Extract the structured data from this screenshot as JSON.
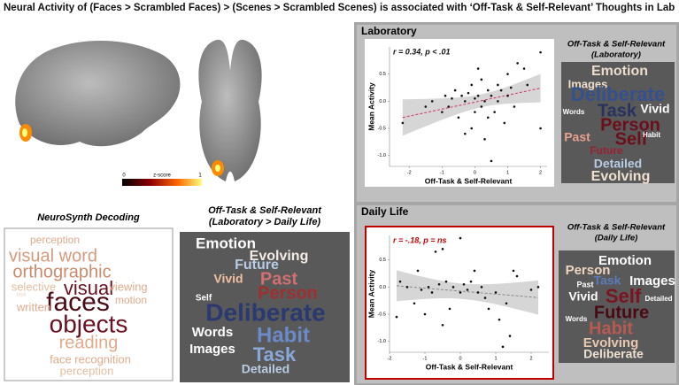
{
  "title": "Neural Activity of (Faces > Scrambled Faces) > (Scenes > Scrambled Scenes) is associated with ‘Off-Task & Self-Relevant’ Thoughts in Lab",
  "colorbar": {
    "min_label": "0",
    "label": "z-score",
    "max_label": "1"
  },
  "neurosynth": {
    "title": "NeuroSynth Decoding",
    "words": [
      {
        "text": "perception",
        "color": "#e2ab8c"
      },
      {
        "text": "visual word",
        "color": "#d69a7c"
      },
      {
        "text": "orthographic",
        "color": "#cc8a6c"
      },
      {
        "text": "selective",
        "color": "#e6bea0"
      },
      {
        "text": "visual",
        "color": "#6a1020"
      },
      {
        "text": "viewing",
        "color": "#e2ab8c"
      },
      {
        "text": "task",
        "color": "#eed4c0"
      },
      {
        "text": "faces",
        "color": "#4a0a14"
      },
      {
        "text": "written",
        "color": "#e2ab8c"
      },
      {
        "text": "motion",
        "color": "#e2ab8c"
      },
      {
        "text": "objects",
        "color": "#6a1020"
      },
      {
        "text": "reading",
        "color": "#e2ab8c"
      },
      {
        "text": "face recognition",
        "color": "#e2ab8c"
      },
      {
        "text": "perception",
        "color": "#e6bea0"
      }
    ]
  },
  "contrast_cloud": {
    "title_lines": [
      "Off-Task & Self-Relevant",
      "(Laboratory > Daily Life)"
    ],
    "words": [
      {
        "text": "Emotion",
        "color": "#ffffff"
      },
      {
        "text": "Evolving",
        "color": "#f4ece4"
      },
      {
        "text": "Future",
        "color": "#b8cce4"
      },
      {
        "text": "Vivid",
        "color": "#f0c0a0"
      },
      {
        "text": "Past",
        "color": "#d07070"
      },
      {
        "text": "Self",
        "color": "#ffffff"
      },
      {
        "text": "Person",
        "color": "#a03030"
      },
      {
        "text": "Deliberate",
        "color": "#2a3a70"
      },
      {
        "text": "Words",
        "color": "#ffffff"
      },
      {
        "text": "Habit",
        "color": "#6a8ac8"
      },
      {
        "text": "Images",
        "color": "#ffffff"
      },
      {
        "text": "Task",
        "color": "#8aa8d8"
      },
      {
        "text": "Detailed",
        "color": "#b8cce4"
      }
    ]
  },
  "lab_cloud": {
    "title_lines": [
      "Off-Task & Self-Relevant",
      "(Laboratory)"
    ],
    "words": [
      {
        "text": "Emotion",
        "color": "#ecdccc"
      },
      {
        "text": "Images",
        "color": "#ecdccc"
      },
      {
        "text": "Deliberate",
        "color": "#34508e"
      },
      {
        "text": "Task",
        "color": "#25335e"
      },
      {
        "text": "Words",
        "color": "#ffffff"
      },
      {
        "text": "Vivid",
        "color": "#ffffff"
      },
      {
        "text": "Person",
        "color": "#6b0f1a"
      },
      {
        "text": "Past",
        "color": "#e8a090"
      },
      {
        "text": "Self",
        "color": "#6b0f1a"
      },
      {
        "text": "Habit",
        "color": "#ffffff"
      },
      {
        "text": "Future",
        "color": "#9b2030"
      },
      {
        "text": "Detailed",
        "color": "#b8cce4"
      },
      {
        "text": "Evolving",
        "color": "#f0e0d0"
      }
    ]
  },
  "daily_cloud": {
    "title_lines": [
      "Off-Task & Self-Relevant",
      "(Daily Life)"
    ],
    "words": [
      {
        "text": "Emotion",
        "color": "#ffffff"
      },
      {
        "text": "Person",
        "color": "#f0d5c0"
      },
      {
        "text": "Past",
        "color": "#ffffff"
      },
      {
        "text": "Task",
        "color": "#5a7ab8"
      },
      {
        "text": "Images",
        "color": "#ffffff"
      },
      {
        "text": "Vivid",
        "color": "#ffffff"
      },
      {
        "text": "Self",
        "color": "#7a1520"
      },
      {
        "text": "Detailed",
        "color": "#ffffff"
      },
      {
        "text": "Future",
        "color": "#4a0a14"
      },
      {
        "text": "Words",
        "color": "#ffffff"
      },
      {
        "text": "Habit",
        "color": "#b85a50"
      },
      {
        "text": "Evolving",
        "color": "#e8c8b0"
      },
      {
        "text": "Deliberate",
        "color": "#f0e0d0"
      }
    ]
  },
  "chart_data": [
    {
      "type": "scatter",
      "title": "Laboratory",
      "annotation": "r = 0.34, p < .01",
      "annotation_color": "#111111",
      "frame_color": "#ffffff",
      "line_color": "#d0306a",
      "xlabel": "Off-Task & Self-Relevant",
      "ylabel": "Mean Activity",
      "xlim": [
        -2.6,
        2.2
      ],
      "ylim": [
        -1.2,
        1.0
      ],
      "xticks": [
        -2,
        -1,
        0,
        1,
        2
      ],
      "yticks": [
        {
          "value": -1,
          "label": "-1.0"
        },
        {
          "value": -0.5,
          "label": "-0.5"
        },
        {
          "value": 0,
          "label": "0.0"
        },
        {
          "value": 0.5,
          "label": "0.5"
        }
      ],
      "x": [
        -2.2,
        -1.5,
        -1.3,
        -1.0,
        -0.9,
        -0.8,
        -0.7,
        -0.6,
        -0.5,
        -0.4,
        -0.3,
        -0.3,
        -0.2,
        -0.1,
        -0.1,
        0.0,
        0.0,
        0.1,
        0.1,
        0.2,
        0.2,
        0.3,
        0.3,
        0.4,
        0.4,
        0.5,
        0.5,
        0.6,
        0.7,
        0.7,
        0.8,
        0.9,
        1.0,
        1.0,
        1.1,
        1.2,
        1.3,
        1.5,
        1.6,
        2.0,
        2.0
      ],
      "y": [
        -0.4,
        -0.1,
        0.0,
        -0.2,
        0.1,
        -0.1,
        0.05,
        0.2,
        -0.3,
        0.1,
        0.0,
        -0.6,
        0.15,
        0.3,
        -0.5,
        0.05,
        -0.2,
        0.6,
        0.1,
        -0.1,
        0.4,
        0.0,
        -0.7,
        0.2,
        -0.3,
        -1.1,
        0.1,
        -0.2,
        0.3,
        0.0,
        0.2,
        -0.4,
        0.1,
        0.5,
        0.25,
        -0.1,
        0.7,
        0.6,
        0.3,
        0.9,
        -0.5
      ]
    },
    {
      "type": "scatter",
      "title": "Daily Life",
      "annotation": "r = -.18, p = ns",
      "annotation_color": "#c00000",
      "frame_color": "#c00000",
      "line_color": "#888888",
      "xlabel": "Off-Task & Self-Relevant",
      "ylabel": "Mean Activity",
      "xlim": [
        -2.0,
        2.5
      ],
      "ylim": [
        -1.2,
        0.95
      ],
      "xticks": [
        -2,
        -1,
        0,
        1,
        2
      ],
      "yticks": [
        {
          "value": -1,
          "label": "-1.0"
        },
        {
          "value": -0.5,
          "label": "-0.5"
        },
        {
          "value": 0,
          "label": "0.0"
        },
        {
          "value": 0.5,
          "label": "0.5"
        }
      ],
      "x": [
        -1.8,
        -1.7,
        -1.5,
        -1.3,
        -1.2,
        -1.1,
        -1.0,
        -0.9,
        -0.8,
        -0.7,
        -0.6,
        -0.5,
        -0.5,
        -0.4,
        -0.3,
        -0.2,
        0.0,
        0.0,
        0.1,
        0.2,
        0.3,
        0.4,
        0.5,
        0.6,
        0.7,
        0.8,
        1.0,
        1.1,
        1.2,
        1.3,
        1.4,
        1.5,
        1.6,
        2.0,
        2.2
      ],
      "y": [
        -0.55,
        0.1,
        0.0,
        -0.3,
        0.3,
        -0.05,
        -0.5,
        0.0,
        -0.1,
        0.65,
        0.05,
        0.7,
        -0.7,
        0.1,
        -0.4,
        0.0,
        0.9,
        -0.1,
        0.05,
        -0.05,
        0.1,
        0.3,
        -0.1,
        0.0,
        -0.2,
        -0.4,
        -0.1,
        -0.6,
        -1.1,
        -0.3,
        -0.9,
        0.3,
        0.2,
        -0.05,
        0.0
      ]
    }
  ]
}
